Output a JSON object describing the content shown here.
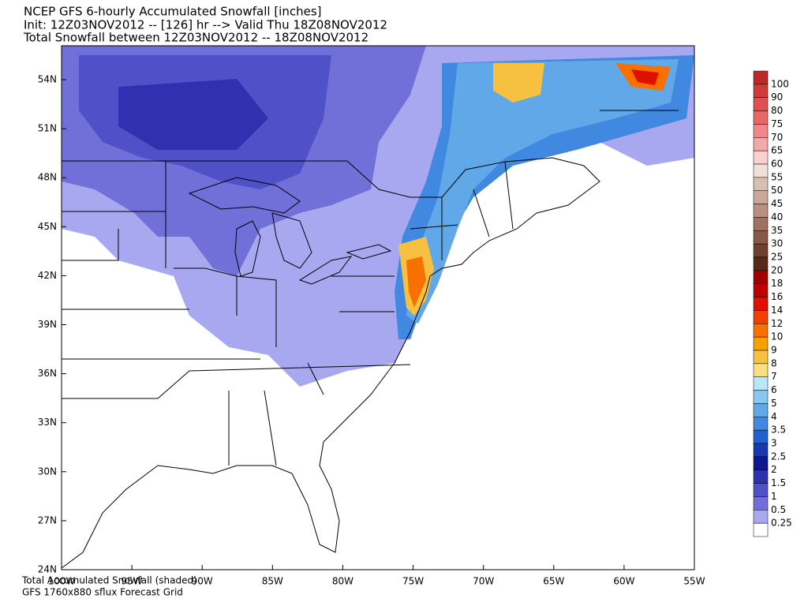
{
  "header": {
    "lines": [
      "NCEP GFS 6-hourly Accumulated Snowfall [inches]",
      "Init: 12Z03NOV2012 -- [126] hr --> Valid Thu 18Z08NOV2012",
      "Total Snowfall between 12Z03NOV2012 -- 18Z08NOV2012"
    ]
  },
  "map": {
    "lat_labels": [
      "54N",
      "51N",
      "48N",
      "45N",
      "42N",
      "39N",
      "36N",
      "33N",
      "30N",
      "27N",
      "24N"
    ],
    "lon_labels": [
      "100W",
      "95W",
      "90W",
      "85W",
      "80W",
      "75W",
      "70W",
      "65W",
      "60W",
      "55W"
    ]
  },
  "legend": {
    "labels": [
      "100",
      "90",
      "80",
      "75",
      "70",
      "65",
      "60",
      "55",
      "50",
      "45",
      "40",
      "35",
      "30",
      "25",
      "20",
      "18",
      "16",
      "14",
      "12",
      "10",
      "9",
      "8",
      "7",
      "6",
      "5",
      "4",
      "3.5",
      "3",
      "2.5",
      "2",
      "1.5",
      "1",
      "0.5",
      "0.25"
    ],
    "colors": [
      "#c02828",
      "#d03a3a",
      "#e05050",
      "#e86868",
      "#f08888",
      "#f5a8a8",
      "#fad0d0",
      "#f0e0d8",
      "#d8c0b0",
      "#c8a898",
      "#b89080",
      "#a07060",
      "#885848",
      "#704030",
      "#582818",
      "#a00000",
      "#c00000",
      "#e01000",
      "#f04000",
      "#f87000",
      "#f8a000",
      "#f8c040",
      "#f8e080",
      "#b8e8f8",
      "#88c8f0",
      "#60a8e8",
      "#4088e0",
      "#2060d0",
      "#1838b0",
      "#101890",
      "#3030b0",
      "#5050c8",
      "#7070d8",
      "#a8a8f0",
      "#ffffff"
    ]
  },
  "footer": {
    "lines": [
      "Total Accumulated Snowfall (shaded)",
      "GFS 1760x880 sflux Forecast Grid"
    ]
  }
}
